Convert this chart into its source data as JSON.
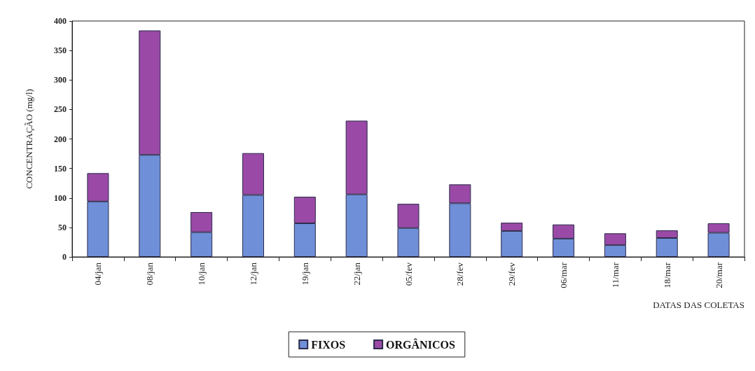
{
  "chart_data": {
    "type": "bar",
    "stacked": true,
    "xlabel": "DATAS DAS COLETAS",
    "ylabel": "CONCENTRAÇÃO (mg/l)",
    "categories": [
      "04/jan",
      "08/jan",
      "10/jan",
      "12/jan",
      "19/jan",
      "22/jan",
      "05/fev",
      "28/fev",
      "29/fev",
      "06/mar",
      "11/mar",
      "18/mar",
      "20/mar"
    ],
    "series": [
      {
        "name": "FIXOS",
        "color": "#6f8fd8",
        "values": [
          94,
          173,
          42,
          105,
          57,
          106,
          49,
          91,
          44,
          31,
          20,
          32,
          41
        ]
      },
      {
        "name": "ORGÂNICOS",
        "color": "#9a4aa6",
        "values": [
          48,
          211,
          34,
          71,
          45,
          125,
          41,
          32,
          14,
          24,
          20,
          13,
          16
        ]
      }
    ],
    "ylim": [
      0,
      400
    ],
    "yticks": [
      0,
      50,
      100,
      150,
      200,
      250,
      300,
      350,
      400
    ],
    "grid": false,
    "legend": "bottom"
  }
}
